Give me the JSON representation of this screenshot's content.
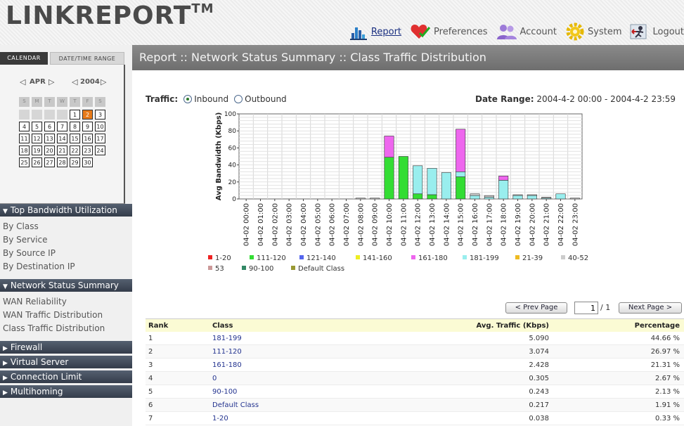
{
  "app": {
    "logo_main": "LINKREPORT",
    "logo_tm": "TM"
  },
  "topnav": [
    {
      "label": "Report",
      "icon": "bar-chart-icon",
      "active": true
    },
    {
      "label": "Preferences",
      "icon": "heart-check-icon",
      "active": false
    },
    {
      "label": "Account",
      "icon": "users-icon",
      "active": false
    },
    {
      "label": "System",
      "icon": "gear-icon",
      "active": false
    },
    {
      "label": "Logout",
      "icon": "logout-icon",
      "active": false
    }
  ],
  "calendar": {
    "tab_calendar": "CALENDAR",
    "tab_daterange": "DATE/TIME RANGE",
    "month": "APR",
    "year": "2004",
    "weekdays": [
      "S",
      "M",
      "T",
      "W",
      "T",
      "F",
      "S"
    ],
    "first_weekday": 4,
    "days_in_month": 30,
    "selected_day": 2
  },
  "sidebar": {
    "sections": [
      {
        "title": "Top Bandwidth Utilization",
        "expanded": true,
        "items": [
          "By Class",
          "By Service",
          "By Source IP",
          "By Destination IP"
        ]
      },
      {
        "title": "Network Status Summary",
        "expanded": true,
        "items": [
          "WAN Reliability",
          "WAN Traffic Distribution",
          "Class Traffic Distribution"
        ]
      },
      {
        "title": "Firewall",
        "expanded": false,
        "items": []
      },
      {
        "title": "Virtual Server",
        "expanded": false,
        "items": []
      },
      {
        "title": "Connection Limit",
        "expanded": false,
        "items": []
      },
      {
        "title": "Multihoming",
        "expanded": false,
        "items": []
      }
    ]
  },
  "page": {
    "title": "Report :: Network Status Summary :: Class Traffic Distribution",
    "traffic_label": "Traffic:",
    "inbound_label": "Inbound",
    "outbound_label": "Outbound",
    "selected_direction": "Inbound",
    "date_range_label": "Date Range:",
    "date_range_value": "2004-4-2 00:00 - 2004-4-2 23:59"
  },
  "chart_data": {
    "type": "bar",
    "stacked": true,
    "ylabel": "Avg Bandwidth (Kbps)",
    "ylim": [
      0,
      100
    ],
    "yticks": [
      0,
      20,
      40,
      60,
      80,
      100
    ],
    "grid": true,
    "categories": [
      "04-02 00:00",
      "04-02 01:00",
      "04-02 02:00",
      "04-02 03:00",
      "04-02 04:00",
      "04-02 05:00",
      "04-02 06:00",
      "04-02 07:00",
      "04-02 08:00",
      "04-02 09:00",
      "04-02 10:00",
      "04-02 11:00",
      "04-02 12:00",
      "04-02 13:00",
      "04-02 14:00",
      "04-02 15:00",
      "04-02 16:00",
      "04-02 17:00",
      "04-02 18:00",
      "04-02 19:00",
      "04-02 20:00",
      "04-02 21:00",
      "04-02 22:00",
      "04-02 23:00"
    ],
    "series": [
      {
        "name": "111-120",
        "color": "#33dd33",
        "values": [
          0,
          0,
          0,
          0,
          0,
          0,
          0,
          0,
          0,
          0,
          49,
          50,
          6,
          5,
          0,
          26,
          0,
          0,
          0,
          0,
          0,
          0,
          0,
          0
        ]
      },
      {
        "name": "181-199",
        "color": "#99eeee",
        "values": [
          0,
          0,
          0,
          0,
          0,
          0,
          0,
          0,
          0,
          0,
          0,
          0,
          33,
          31,
          31,
          6,
          4,
          2,
          22,
          4,
          4,
          1,
          6,
          0
        ]
      },
      {
        "name": "161-180",
        "color": "#ee66ee",
        "values": [
          0,
          0,
          0,
          0,
          0,
          0,
          0,
          0,
          0,
          0,
          25,
          0,
          0,
          0,
          0,
          50,
          0,
          0,
          5,
          0,
          0,
          0,
          0,
          0
        ]
      },
      {
        "name": "40-52",
        "color": "#cccccc",
        "values": [
          0,
          0,
          0,
          0,
          0,
          0,
          0,
          0,
          1,
          1,
          0,
          0,
          0,
          0,
          0,
          0,
          2,
          2,
          0,
          1,
          1,
          1,
          0,
          1
        ]
      }
    ],
    "legend": [
      {
        "name": "1-20",
        "color": "#ee2222"
      },
      {
        "name": "111-120",
        "color": "#33dd33"
      },
      {
        "name": "121-140",
        "color": "#5566ee"
      },
      {
        "name": "141-160",
        "color": "#eeee22"
      },
      {
        "name": "161-180",
        "color": "#ee66ee"
      },
      {
        "name": "181-199",
        "color": "#99eeee"
      },
      {
        "name": "21-39",
        "color": "#eebb22"
      },
      {
        "name": "40-52",
        "color": "#cccccc"
      },
      {
        "name": "53",
        "color": "#cc9999"
      },
      {
        "name": "90-100",
        "color": "#338866"
      },
      {
        "name": "Default Class",
        "color": "#999933"
      }
    ]
  },
  "pager": {
    "prev_label": "< Prev Page",
    "next_label": "Next Page >",
    "current_page": "1",
    "total": "/ 1"
  },
  "table": {
    "headers": {
      "rank": "Rank",
      "class": "Class",
      "avg": "Avg. Traffic (Kbps)",
      "pct": "Percentage"
    },
    "rows": [
      {
        "rank": "1",
        "class": "181-199",
        "avg": "5.090",
        "pct": "44.66 %"
      },
      {
        "rank": "2",
        "class": "111-120",
        "avg": "3.074",
        "pct": "26.97 %"
      },
      {
        "rank": "3",
        "class": "161-180",
        "avg": "2.428",
        "pct": "21.31 %"
      },
      {
        "rank": "4",
        "class": "0",
        "avg": "0.305",
        "pct": "2.67 %"
      },
      {
        "rank": "5",
        "class": "90-100",
        "avg": "0.243",
        "pct": "2.13 %"
      },
      {
        "rank": "6",
        "class": "Default Class",
        "avg": "0.217",
        "pct": "1.91 %"
      },
      {
        "rank": "7",
        "class": "1-20",
        "avg": "0.038",
        "pct": "0.33 %"
      }
    ]
  }
}
